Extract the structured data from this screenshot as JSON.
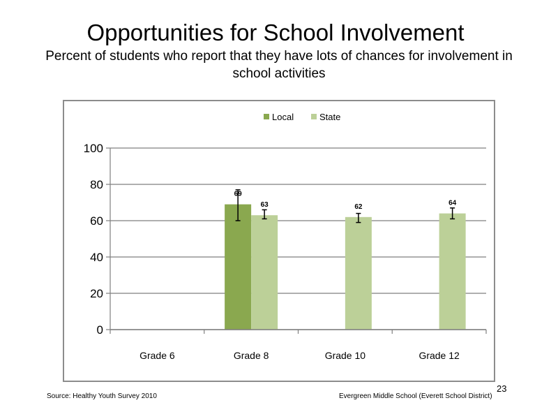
{
  "slide": {
    "title": "Opportunities  for School  Involvement",
    "subtitle": "Percent of students  who report that they have lots of chances  for involvement  in school activities",
    "source": "Source: Healthy  Youth Survey 2010",
    "school": "Evergreen Middle  School  (Everett School District)",
    "page_number": "23"
  },
  "chart_data": {
    "type": "bar",
    "categories": [
      "Grade 6",
      "Grade 8",
      "Grade 10",
      "Grade 12"
    ],
    "series": [
      {
        "name": "Local",
        "color": "#8aa84f",
        "values": [
          null,
          69,
          null,
          null
        ],
        "labels": [
          null,
          "69",
          null,
          null
        ],
        "error_low": [
          null,
          60,
          null,
          null
        ],
        "error_high": [
          null,
          77,
          null,
          null
        ]
      },
      {
        "name": "State",
        "color": "#bcd098",
        "values": [
          null,
          63,
          62,
          64
        ],
        "labels": [
          null,
          "63",
          "62",
          "64"
        ],
        "error_low": [
          null,
          61,
          59,
          61
        ],
        "error_high": [
          null,
          66,
          64,
          67
        ]
      }
    ],
    "ylim": [
      0,
      100
    ],
    "yticks": [
      0,
      20,
      40,
      60,
      80,
      100
    ],
    "grid": true,
    "legend_position": "top"
  }
}
